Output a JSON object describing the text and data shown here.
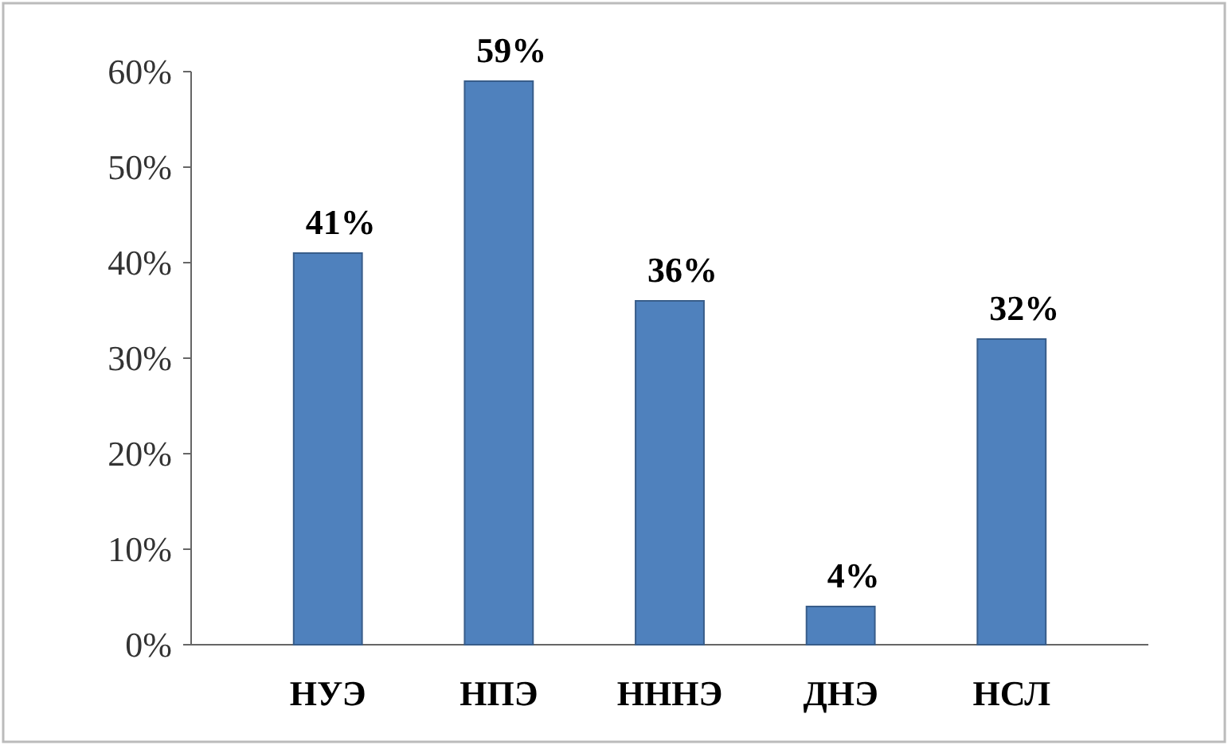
{
  "chart_data": {
    "type": "bar",
    "categories": [
      "НУЭ",
      "НПЭ",
      "НННЭ",
      "ДНЭ",
      "НСЛ"
    ],
    "values": [
      41,
      59,
      36,
      4,
      32
    ],
    "color": "#4f81bd",
    "data_labels": true,
    "value_labels": [
      "41%",
      "59%",
      "36%",
      "4%",
      "32%"
    ],
    "ylim": [
      0,
      60
    ],
    "yticks": [
      {
        "value": 0,
        "label": "0%"
      },
      {
        "value": 10,
        "label": "10%"
      },
      {
        "value": 20,
        "label": "20%"
      },
      {
        "value": 30,
        "label": "30%"
      },
      {
        "value": 40,
        "label": "40%"
      },
      {
        "value": 50,
        "label": "50%"
      },
      {
        "value": 60,
        "label": "60%"
      }
    ],
    "grid": false
  }
}
